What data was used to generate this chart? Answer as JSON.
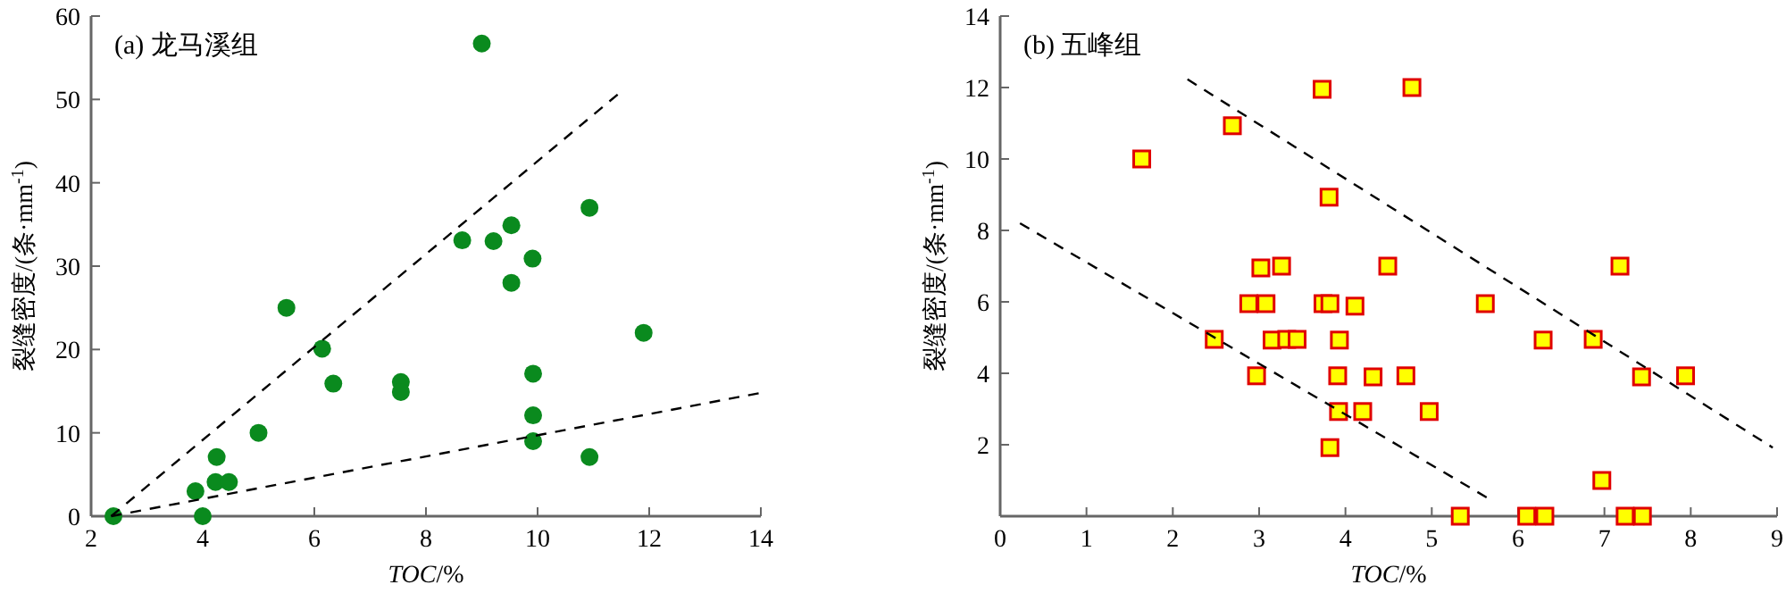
{
  "chart_data": [
    {
      "type": "scatter",
      "title": "(a) 龙马溪组",
      "xlabel": "*TOC*/%",
      "ylabel": "裂缝密度/(条·mm$^{-1}$)",
      "marker": "circle",
      "xlim": [
        2,
        14
      ],
      "ylim": [
        0,
        60
      ],
      "xticks": [
        2,
        4,
        6,
        8,
        10,
        12,
        14
      ],
      "yticks": [
        0,
        10,
        20,
        30,
        40,
        50,
        60
      ],
      "series": [
        {
          "color": "#0a8a1e",
          "x": [
            2.4,
            4.0,
            3.87,
            4.25,
            4.23,
            4.47,
            5.0,
            5.5,
            6.14,
            6.34,
            7.55,
            7.55,
            8.65,
            9.0,
            9.21,
            9.53,
            9.53,
            9.91,
            9.92,
            9.92,
            9.92,
            10.93,
            10.93,
            11.9
          ],
          "values": [
            0,
            0,
            3.0,
            7.1,
            4.1,
            4.1,
            10,
            25,
            20.1,
            15.9,
            16.1,
            14.9,
            33.1,
            56.7,
            33,
            34.9,
            28.0,
            30.9,
            17.1,
            12.1,
            9.0,
            37.0,
            7.1,
            22.0
          ]
        },
        {
          "type": "line",
          "color": "#000000",
          "line_style": "dashed",
          "marker": "none",
          "x": [
            2.36,
            11.49
          ],
          "values": [
            0,
            50.9
          ]
        },
        {
          "type": "line",
          "color": "#000000",
          "line_style": "dashed",
          "marker": "none",
          "x": [
            2.36,
            14
          ],
          "values": [
            0,
            14.8
          ]
        }
      ]
    },
    {
      "type": "scatter",
      "title": "(b) 五峰组",
      "xlabel": "*TOC*/%",
      "ylabel": "裂缝密度/(条·mm$^{-1}$)",
      "marker": "square",
      "xlim": [
        0,
        9
      ],
      "ylim": [
        0,
        14
      ],
      "xticks": [
        0,
        1,
        2,
        3,
        4,
        5,
        6,
        7,
        8,
        9
      ],
      "yticks": [
        2,
        4,
        6,
        8,
        10,
        12,
        14
      ],
      "series": [
        {
          "color": "#ffff00",
          "x": [
            1.64,
            2.69,
            3.73,
            4.77,
            3.81,
            3.02,
            3.26,
            4.49,
            7.18,
            2.88,
            3.08,
            3.74,
            3.82,
            4.11,
            5.62,
            2.48,
            3.15,
            3.32,
            3.44,
            3.93,
            6.29,
            6.87,
            2.97,
            3.91,
            4.32,
            4.7,
            7.43,
            7.94,
            3.92,
            4.2,
            4.97,
            3.82,
            6.97,
            5.33,
            6.1,
            6.31,
            7.24,
            7.44
          ],
          "values": [
            10,
            10.93,
            11.95,
            12,
            8.93,
            6.95,
            7.0,
            7.0,
            7.0,
            5.95,
            5.95,
            5.95,
            5.95,
            5.88,
            5.95,
            4.95,
            4.93,
            4.95,
            4.95,
            4.93,
            4.93,
            4.95,
            3.93,
            3.93,
            3.9,
            3.93,
            3.9,
            3.93,
            2.93,
            2.93,
            2.93,
            1.92,
            1.0,
            0,
            0,
            0,
            0,
            0
          ]
        },
        {
          "type": "line",
          "color": "#000000",
          "line_style": "dashed",
          "marker": "none",
          "x": [
            0.23,
            5.64
          ],
          "values": [
            8.2,
            0.52
          ]
        },
        {
          "type": "line",
          "color": "#000000",
          "line_style": "dashed",
          "marker": "none",
          "x": [
            2.17,
            8.95
          ],
          "values": [
            12.23,
            1.92
          ]
        }
      ]
    }
  ]
}
